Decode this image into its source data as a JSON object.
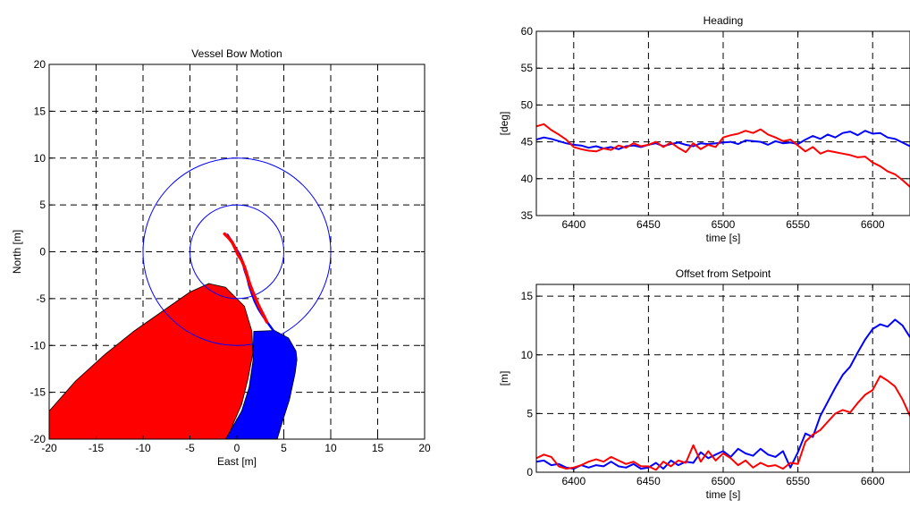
{
  "chart_data": [
    {
      "id": "bow",
      "type": "scatter",
      "title": "Vessel Bow Motion",
      "xlabel": "East [m]",
      "ylabel": "North [m]",
      "xlim": [
        -20,
        20
      ],
      "ylim": [
        -20,
        20
      ],
      "xticks": [
        -20,
        -15,
        -10,
        -5,
        0,
        5,
        10,
        15,
        20
      ],
      "yticks": [
        -20,
        -15,
        -10,
        -5,
        0,
        5,
        10,
        15,
        20
      ],
      "grid": true,
      "colors": {
        "blue": "#0000ff",
        "red": "#ff0000",
        "circle": "#0000ff"
      },
      "circles": [
        {
          "cx": 0,
          "cy": 0,
          "r": 5
        },
        {
          "cx": 0,
          "cy": 0,
          "r": 10
        }
      ],
      "shapes": [
        {
          "name": "red-vessel-hull",
          "color": "#ff0000",
          "points": [
            [
              -20,
              -17
            ],
            [
              -17.2,
              -13.8
            ],
            [
              -14,
              -10.9
            ],
            [
              -11,
              -8.5
            ],
            [
              -8,
              -6.4
            ],
            [
              -5,
              -4.3
            ],
            [
              -3,
              -3.4
            ],
            [
              -1.2,
              -3.8
            ],
            [
              0.8,
              -5.8
            ],
            [
              1.6,
              -8.5
            ],
            [
              1.7,
              -10.8
            ],
            [
              1.2,
              -13.5
            ],
            [
              0.5,
              -16.3
            ],
            [
              -0.5,
              -18.6
            ],
            [
              -1,
              -20
            ],
            [
              -20,
              -20
            ]
          ]
        },
        {
          "name": "blue-vessel-hull",
          "color": "#0000ff",
          "points": [
            [
              -1.2,
              -20
            ],
            [
              0.5,
              -17
            ],
            [
              1.3,
              -14.5
            ],
            [
              1.7,
              -11.7
            ],
            [
              1.8,
              -8.5
            ],
            [
              4,
              -8.4
            ],
            [
              5.5,
              -9.2
            ],
            [
              6.3,
              -10.6
            ],
            [
              6.4,
              -11.5
            ],
            [
              6.2,
              -13
            ],
            [
              5.6,
              -15.8
            ],
            [
              4.8,
              -18.3
            ],
            [
              4.3,
              -20
            ]
          ]
        }
      ],
      "series": [
        {
          "color": "#0000ff",
          "x": [
            -1.0,
            -0.6,
            -0.2,
            0.3,
            0.6,
            0.8,
            1.1,
            1.3,
            1.6,
            1.9,
            2.3,
            2.8,
            3.3,
            3.8,
            4.3,
            4.8,
            5.3,
            5.7,
            6.0,
            6.3
          ],
          "y": [
            1.8,
            1.2,
            0.5,
            -0.3,
            -1.0,
            -1.9,
            -2.8,
            -3.6,
            -4.5,
            -5.3,
            -6.1,
            -6.9,
            -7.6,
            -8.3,
            -8.9,
            -9.4,
            -9.9,
            -10.4,
            -10.8,
            -11.3
          ]
        },
        {
          "color": "#ff0000",
          "x": [
            -1.3,
            -0.9,
            -0.5,
            -0.2,
            0.1,
            0.5,
            0.8,
            1.0,
            1.2,
            1.4,
            1.7,
            2.0,
            2.3,
            2.6,
            2.9,
            3.2
          ],
          "y": [
            1.9,
            1.5,
            1.0,
            0.4,
            -0.3,
            -0.9,
            -1.6,
            -2.2,
            -2.9,
            -3.5,
            -4.3,
            -5.0,
            -5.7,
            -6.3,
            -6.9,
            -7.5
          ]
        }
      ]
    },
    {
      "id": "heading",
      "type": "line",
      "title": "Heading",
      "xlabel": "time [s]",
      "ylabel": "[deg]",
      "xlim": [
        6375,
        6625
      ],
      "ylim": [
        35,
        60
      ],
      "xticks": [
        6400,
        6450,
        6500,
        6550,
        6600
      ],
      "yticks": [
        35,
        40,
        45,
        50,
        55,
        60
      ],
      "grid": true,
      "series": [
        {
          "color": "#0000ff",
          "x": [
            6375,
            6380,
            6385,
            6390,
            6395,
            6400,
            6405,
            6410,
            6415,
            6420,
            6425,
            6430,
            6435,
            6440,
            6445,
            6450,
            6455,
            6460,
            6465,
            6470,
            6475,
            6480,
            6485,
            6490,
            6495,
            6500,
            6505,
            6510,
            6515,
            6520,
            6525,
            6530,
            6535,
            6540,
            6545,
            6550,
            6555,
            6560,
            6565,
            6570,
            6575,
            6580,
            6585,
            6590,
            6595,
            6600,
            6605,
            6610,
            6615,
            6620,
            6625
          ],
          "y": [
            45.3,
            45.6,
            45.4,
            45.1,
            44.8,
            44.6,
            44.5,
            44.2,
            44.4,
            44.1,
            44.3,
            44.0,
            44.4,
            44.5,
            44.3,
            44.6,
            44.8,
            44.4,
            44.7,
            44.9,
            44.6,
            44.4,
            44.8,
            44.7,
            44.8,
            44.9,
            45.0,
            44.7,
            45.2,
            45.1,
            45.0,
            44.6,
            45.1,
            44.8,
            44.9,
            44.7,
            45.3,
            45.8,
            45.4,
            46.0,
            45.6,
            46.2,
            46.4,
            45.9,
            46.5,
            46.1,
            46.2,
            45.6,
            45.4,
            44.9,
            44.4
          ]
        },
        {
          "color": "#ff0000",
          "x": [
            6375,
            6380,
            6385,
            6390,
            6395,
            6400,
            6405,
            6410,
            6415,
            6420,
            6425,
            6430,
            6435,
            6440,
            6445,
            6450,
            6455,
            6460,
            6465,
            6470,
            6475,
            6480,
            6485,
            6490,
            6495,
            6500,
            6505,
            6510,
            6515,
            6520,
            6525,
            6530,
            6535,
            6540,
            6545,
            6550,
            6555,
            6560,
            6565,
            6570,
            6575,
            6580,
            6585,
            6590,
            6595,
            6600,
            6605,
            6610,
            6615,
            6620,
            6625
          ],
          "y": [
            47.1,
            47.4,
            46.6,
            46.0,
            45.3,
            44.3,
            44.0,
            43.8,
            43.7,
            44.1,
            43.9,
            44.5,
            44.2,
            44.8,
            44.4,
            44.6,
            45.0,
            44.3,
            44.9,
            44.2,
            43.6,
            44.8,
            44.0,
            44.6,
            44.3,
            45.6,
            45.9,
            46.1,
            46.5,
            46.2,
            46.7,
            46.0,
            45.6,
            45.1,
            45.3,
            44.5,
            43.7,
            44.3,
            43.4,
            43.8,
            43.6,
            43.4,
            43.2,
            42.9,
            43.0,
            42.2,
            41.7,
            41.0,
            40.6,
            39.8,
            38.9
          ]
        }
      ]
    },
    {
      "id": "offset",
      "type": "line",
      "title": "Offset from Setpoint",
      "xlabel": "time [s]",
      "ylabel": "[m]",
      "xlim": [
        6375,
        6625
      ],
      "ylim": [
        0,
        16
      ],
      "xticks": [
        6400,
        6450,
        6500,
        6550,
        6600
      ],
      "yticks": [
        0,
        5,
        10,
        15
      ],
      "grid": true,
      "series": [
        {
          "color": "#0000ff",
          "x": [
            6375,
            6380,
            6385,
            6390,
            6395,
            6400,
            6405,
            6410,
            6415,
            6420,
            6425,
            6430,
            6435,
            6440,
            6445,
            6450,
            6455,
            6460,
            6465,
            6470,
            6475,
            6480,
            6485,
            6490,
            6495,
            6500,
            6505,
            6510,
            6515,
            6520,
            6525,
            6530,
            6535,
            6540,
            6545,
            6550,
            6555,
            6560,
            6565,
            6570,
            6575,
            6580,
            6585,
            6590,
            6595,
            6600,
            6605,
            6610,
            6615,
            6620,
            6625
          ],
          "y": [
            0.9,
            1.0,
            0.6,
            0.7,
            0.4,
            0.3,
            0.6,
            0.4,
            0.6,
            0.5,
            0.9,
            0.5,
            0.4,
            0.7,
            0.3,
            0.4,
            0.8,
            0.3,
            1.0,
            0.6,
            0.9,
            0.8,
            1.7,
            1.2,
            1.5,
            1.8,
            1.3,
            2.0,
            1.6,
            1.4,
            2.0,
            1.5,
            1.3,
            1.8,
            0.4,
            1.7,
            3.3,
            3.0,
            4.8,
            6.0,
            7.2,
            8.3,
            9.0,
            10.2,
            11.3,
            12.2,
            12.6,
            12.4,
            13.0,
            12.5,
            11.5
          ]
        },
        {
          "color": "#ff0000",
          "x": [
            6375,
            6380,
            6385,
            6390,
            6395,
            6400,
            6405,
            6410,
            6415,
            6420,
            6425,
            6430,
            6435,
            6440,
            6445,
            6450,
            6455,
            6460,
            6465,
            6470,
            6475,
            6480,
            6485,
            6490,
            6495,
            6500,
            6505,
            6510,
            6515,
            6520,
            6525,
            6530,
            6535,
            6540,
            6545,
            6550,
            6555,
            6560,
            6565,
            6570,
            6575,
            6580,
            6585,
            6590,
            6595,
            6600,
            6605,
            6610,
            6615,
            6620,
            6625
          ],
          "y": [
            1.2,
            1.5,
            1.3,
            0.5,
            0.3,
            0.4,
            0.6,
            0.9,
            1.1,
            0.9,
            1.3,
            1.0,
            0.7,
            0.9,
            0.5,
            0.5,
            0.2,
            0.9,
            0.5,
            1.0,
            0.8,
            2.3,
            0.9,
            1.8,
            1.0,
            1.6,
            1.2,
            0.6,
            1.0,
            0.4,
            0.8,
            0.5,
            0.6,
            0.3,
            0.8,
            0.7,
            2.6,
            3.2,
            3.6,
            4.3,
            5.0,
            5.3,
            5.1,
            5.9,
            6.6,
            7.0,
            8.2,
            7.8,
            7.3,
            6.2,
            4.8
          ]
        }
      ]
    }
  ]
}
